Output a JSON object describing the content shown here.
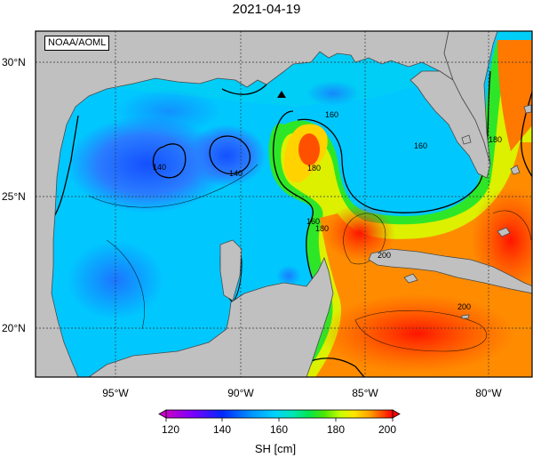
{
  "title": "2021-04-19",
  "credit": "NOAA/AOML",
  "lat_labels": [
    "30°N",
    "25°N",
    "20°N"
  ],
  "lon_labels": [
    "95°W",
    "90°W",
    "85°W",
    "80°W"
  ],
  "contour_labels": [
    "140",
    "140",
    "160",
    "160",
    "160",
    "180",
    "180",
    "180",
    "200",
    "200"
  ],
  "colorbar": {
    "ticks": [
      "120",
      "140",
      "160",
      "180",
      "200"
    ],
    "label": "SH [cm]",
    "colors": [
      "#c800c8",
      "#7800ff",
      "#0028ff",
      "#0096ff",
      "#00d2ff",
      "#00e6b4",
      "#00e650",
      "#50e600",
      "#c8ff00",
      "#ffe600",
      "#ffa000",
      "#ff5000",
      "#ff0000"
    ]
  },
  "colors": {
    "land": "#c0c0c0",
    "frame": "#000000",
    "grid": "#555555",
    "marker": "#000000"
  },
  "icons": [
    "triangle-marker-icon",
    "colorbar-left-arrow-icon",
    "colorbar-right-arrow-icon"
  ]
}
